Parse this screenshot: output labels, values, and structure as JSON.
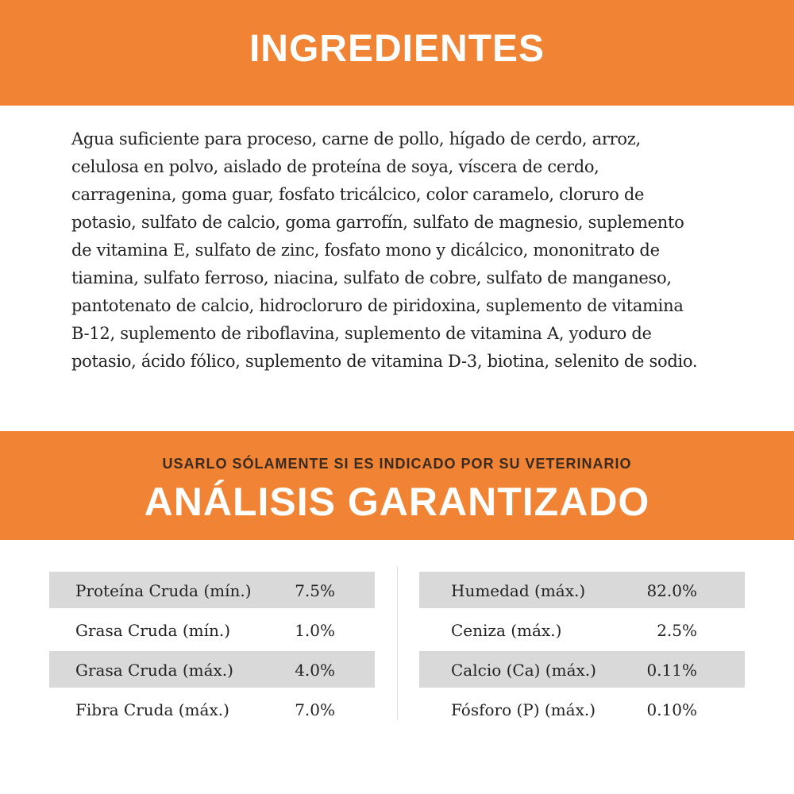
{
  "header": {
    "title": "INGREDIENTES"
  },
  "ingredients": {
    "lines": [
      "Agua suficiente para proceso, carne de pollo, hígado de cerdo, arroz,",
      "celulosa en polvo, aislado de proteína de soya, víscera de cerdo,",
      "carragenina, goma guar, fosfato tricálcico, color caramelo, cloruro de",
      "potasio, sulfato de calcio, goma garrofín, sulfato de magnesio, suplemento",
      "de vitamina E, sulfato de zinc, fosfato mono y dicálcico, mononitrato de",
      "tiamina, sulfato ferroso, niacina, sulfato de cobre, sulfato de manganeso,",
      "pantotenato de calcio, hidrocloruro de piridoxina, suplemento de vitamina",
      "B-12, suplemento de riboflavina, suplemento de vitamina A, yoduro de",
      "potasio, ácido fólico, suplemento de vitamina D-3, biotina, selenito de sodio."
    ]
  },
  "analysis": {
    "note": "USARLO SÓLAMENTE SI ES INDICADO POR SU VETERINARIO",
    "title": "ANÁLISIS GARANTIZADO",
    "left": [
      [
        "Proteína Cruda (mín.)",
        "7.5%"
      ],
      [
        "Grasa Cruda (mín.)",
        "1.0%"
      ],
      [
        "Grasa Cruda (máx.)",
        "4.0%"
      ],
      [
        "Fibra Cruda (máx.)",
        "7.0%"
      ]
    ],
    "right": [
      [
        "Humedad (máx.)",
        "82.0%"
      ],
      [
        "Ceniza (máx.)",
        "2.5%"
      ],
      [
        "Calcio (Ca) (máx.)",
        "0.11%"
      ],
      [
        "Fósforo (P) (máx.)",
        "0.10%"
      ]
    ]
  }
}
